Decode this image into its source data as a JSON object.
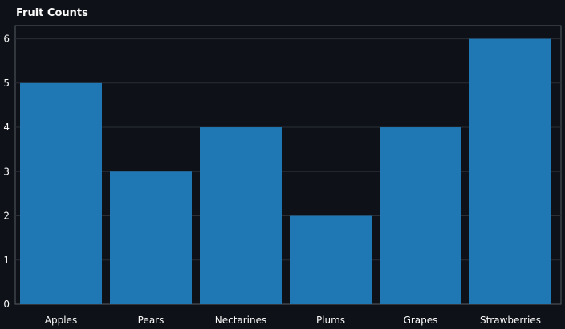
{
  "chart_data": {
    "type": "bar",
    "title": "Fruit Counts",
    "xlabel": "",
    "ylabel": "",
    "categories": [
      "Apples",
      "Pears",
      "Nectarines",
      "Plums",
      "Grapes",
      "Strawberries"
    ],
    "values": [
      5,
      3,
      4,
      2,
      4,
      6
    ],
    "ylim": [
      0,
      6.3
    ],
    "yticks": [
      "0",
      "1",
      "2",
      "3",
      "4",
      "5",
      "6"
    ],
    "grid": true,
    "legend": "none"
  },
  "colors": {
    "background": "#0e1117",
    "bar": "#1f77b4",
    "grid": "#2a2e37",
    "text": "#fafafa",
    "frame": "#555a63"
  }
}
